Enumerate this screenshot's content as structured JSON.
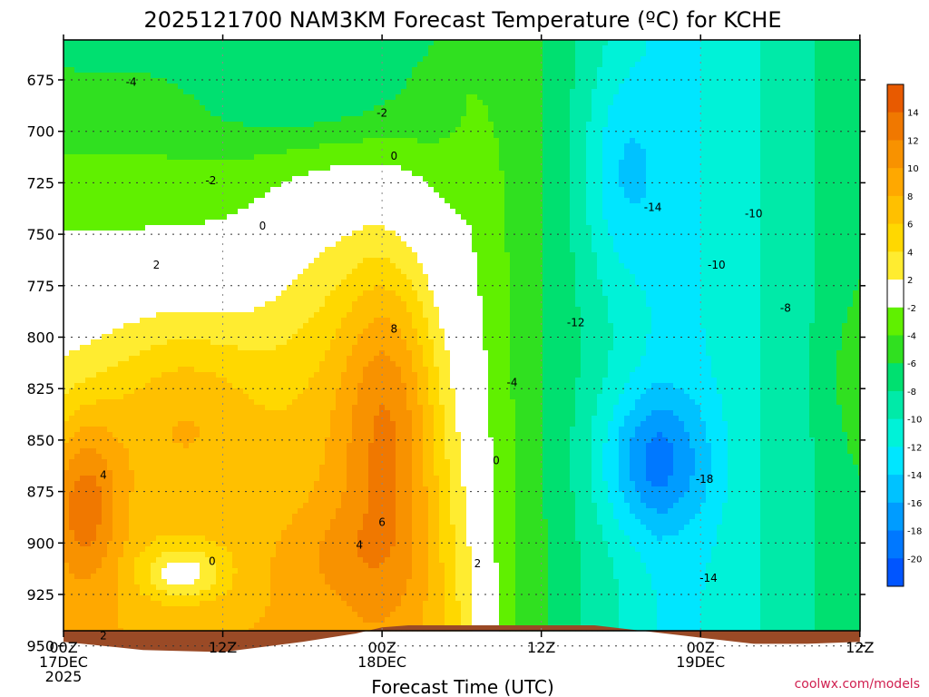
{
  "title": "2025121700 NAM3KM Forecast Temperature (ºC) for KCHE",
  "credit": "coolwx.com/models",
  "chart_data": {
    "type": "heatmap",
    "title": "2025121700 NAM3KM Forecast Temperature (ºC) for KCHE",
    "xlabel": "Forecast Time (UTC)",
    "ylabel": "",
    "x_ticks": [
      {
        "h": 0,
        "lines": [
          "00Z",
          "17DEC",
          "2025"
        ]
      },
      {
        "h": 12,
        "lines": [
          "12Z"
        ]
      },
      {
        "h": 24,
        "lines": [
          "00Z",
          "18DEC"
        ]
      },
      {
        "h": 36,
        "lines": [
          "12Z"
        ]
      },
      {
        "h": 48,
        "lines": [
          "00Z",
          "19DEC"
        ]
      },
      {
        "h": 60,
        "lines": [
          "12Z"
        ]
      }
    ],
    "xlim": [
      0,
      60
    ],
    "y_ticks": [
      675,
      700,
      725,
      750,
      775,
      800,
      825,
      850,
      875,
      900,
      925,
      950
    ],
    "ylim": [
      955,
      656
    ],
    "ground_pressure": [
      [
        0,
        948
      ],
      [
        6,
        952
      ],
      [
        12,
        953
      ],
      [
        18,
        948
      ],
      [
        22,
        944
      ],
      [
        24,
        941
      ],
      [
        26,
        940
      ],
      [
        32,
        940
      ],
      [
        36,
        940
      ],
      [
        40,
        940
      ],
      [
        44,
        943
      ],
      [
        48,
        946
      ],
      [
        52,
        949
      ],
      [
        56,
        949
      ],
      [
        60,
        948
      ]
    ],
    "colorbar": {
      "ticks": [
        14,
        12,
        10,
        8,
        6,
        4,
        2,
        -2,
        -4,
        -6,
        -8,
        -10,
        -12,
        -14,
        -16,
        -18,
        -20
      ],
      "bins": [
        {
          "range": [
            14,
            16
          ],
          "color": "#e85a00"
        },
        {
          "range": [
            12,
            14
          ],
          "color": "#f07800"
        },
        {
          "range": [
            10,
            12
          ],
          "color": "#f89200"
        },
        {
          "range": [
            8,
            10
          ],
          "color": "#ffa800"
        },
        {
          "range": [
            6,
            8
          ],
          "color": "#ffc000"
        },
        {
          "range": [
            4,
            6
          ],
          "color": "#ffd800"
        },
        {
          "range": [
            2,
            4
          ],
          "color": "#ffec30"
        },
        {
          "range": [
            -2,
            2
          ],
          "color": "#ffffff"
        },
        {
          "range": [
            -4,
            -2
          ],
          "color": "#60f000"
        },
        {
          "range": [
            -6,
            -4
          ],
          "color": "#30e020"
        },
        {
          "range": [
            -8,
            -6
          ],
          "color": "#00e070"
        },
        {
          "range": [
            -10,
            -8
          ],
          "color": "#00eaa8"
        },
        {
          "range": [
            -12,
            -10
          ],
          "color": "#00f2d8"
        },
        {
          "range": [
            -14,
            -12
          ],
          "color": "#00e6ff"
        },
        {
          "range": [
            -16,
            -14
          ],
          "color": "#00c2ff"
        },
        {
          "range": [
            -18,
            -16
          ],
          "color": "#009cff"
        },
        {
          "range": [
            -20,
            -18
          ],
          "color": "#0078ff"
        },
        {
          "range": [
            -22,
            -20
          ],
          "color": "#0055ff"
        }
      ]
    },
    "contour_labels": [
      {
        "text": "-4",
        "h": 5.1,
        "p": 676
      },
      {
        "text": "-2",
        "h": 24.0,
        "p": 691
      },
      {
        "text": "-2",
        "h": 11.1,
        "p": 724
      },
      {
        "text": "0",
        "h": 24.9,
        "p": 712
      },
      {
        "text": "0",
        "h": 15.0,
        "p": 746
      },
      {
        "text": "2",
        "h": 7.0,
        "p": 765
      },
      {
        "text": "8",
        "h": 24.9,
        "p": 796
      },
      {
        "text": "4",
        "h": 3.0,
        "p": 867
      },
      {
        "text": "6",
        "h": 24.0,
        "p": 890
      },
      {
        "text": "4",
        "h": 22.3,
        "p": 901
      },
      {
        "text": "0",
        "h": 11.2,
        "p": 909
      },
      {
        "text": "2",
        "h": 3.0,
        "p": 945
      },
      {
        "text": "0",
        "h": 32.6,
        "p": 860
      },
      {
        "text": "2",
        "h": 31.2,
        "p": 910
      },
      {
        "text": "-4",
        "h": 33.8,
        "p": 822
      },
      {
        "text": "-12",
        "h": 38.6,
        "p": 793
      },
      {
        "text": "-14",
        "h": 44.4,
        "p": 737
      },
      {
        "text": "-10",
        "h": 52.0,
        "p": 740
      },
      {
        "text": "-10",
        "h": 49.2,
        "p": 765
      },
      {
        "text": "-8",
        "h": 54.4,
        "p": 786
      },
      {
        "text": "-18",
        "h": 48.3,
        "p": 869
      },
      {
        "text": "-14",
        "h": 48.6,
        "p": 917
      }
    ]
  }
}
